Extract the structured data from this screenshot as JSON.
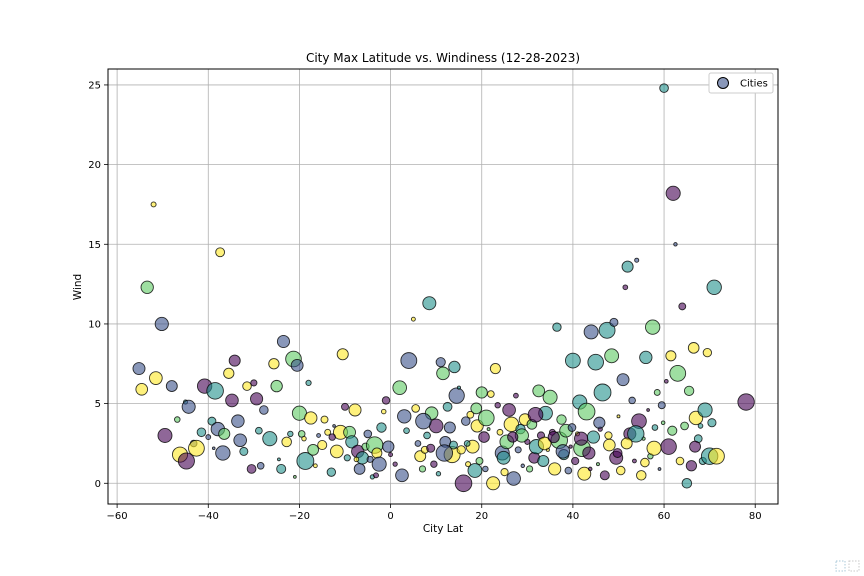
{
  "chart_data": {
    "type": "scatter",
    "title": "City Max Latitude vs. Windiness (12-28-2023)",
    "xlabel": "City Lat",
    "ylabel": "Wind",
    "xlim": [
      -62,
      85
    ],
    "ylim": [
      -1.3,
      26
    ],
    "xticks": [
      -60,
      -40,
      -20,
      0,
      20,
      40,
      60,
      80
    ],
    "yticks": [
      0,
      5,
      10,
      15,
      20,
      25
    ],
    "grid": true,
    "legend": {
      "entries": [
        "Cities"
      ],
      "placement": "top-right"
    },
    "colormap": [
      "#440154",
      "#3b528b",
      "#21918c",
      "#5ec962",
      "#fde725"
    ],
    "marker_alpha": 0.6,
    "series": [
      {
        "name": "Cities",
        "points": [
          [
            -55.2,
            7.2
          ],
          [
            -54.6,
            5.9
          ],
          [
            -53.4,
            12.3
          ],
          [
            -52.0,
            17.5
          ],
          [
            -51.5,
            6.6
          ],
          [
            -50.2,
            10.0
          ],
          [
            -49.5,
            3.0
          ],
          [
            -48.0,
            6.1
          ],
          [
            -46.8,
            4.0
          ],
          [
            -46.2,
            1.8
          ],
          [
            -45.0,
            5.1
          ],
          [
            -44.3,
            4.8
          ],
          [
            -43.2,
            2.5
          ],
          [
            -42.6,
            2.2
          ],
          [
            -41.5,
            3.2
          ],
          [
            -40.8,
            6.1
          ],
          [
            -40.0,
            2.9
          ],
          [
            -39.2,
            3.9
          ],
          [
            -38.5,
            5.8
          ],
          [
            -37.9,
            3.4
          ],
          [
            -37.4,
            14.5
          ],
          [
            -36.8,
            1.9
          ],
          [
            -35.5,
            6.9
          ],
          [
            -34.8,
            5.2
          ],
          [
            -34.2,
            7.7
          ],
          [
            -33.5,
            3.9
          ],
          [
            -33.0,
            2.7
          ],
          [
            -32.2,
            2.0
          ],
          [
            -31.5,
            6.1
          ],
          [
            -30.5,
            0.9
          ],
          [
            -30.0,
            6.3
          ],
          [
            -29.4,
            5.3
          ],
          [
            -28.5,
            1.1
          ],
          [
            -27.8,
            4.6
          ],
          [
            -26.5,
            2.8
          ],
          [
            -25.6,
            7.5
          ],
          [
            -25.0,
            6.1
          ],
          [
            -24.5,
            1.5
          ],
          [
            -24.0,
            0.9
          ],
          [
            -23.5,
            8.9
          ],
          [
            -22.8,
            2.6
          ],
          [
            -22.0,
            3.1
          ],
          [
            -21.3,
            7.8
          ],
          [
            -21.0,
            0.4
          ],
          [
            -20.5,
            7.4
          ],
          [
            -20.0,
            4.4
          ],
          [
            -19.5,
            3.1
          ],
          [
            -18.7,
            1.4
          ],
          [
            -18.0,
            6.3
          ],
          [
            -17.5,
            4.1
          ],
          [
            -17.0,
            2.1
          ],
          [
            -16.5,
            1.1
          ],
          [
            -15.8,
            3.0
          ],
          [
            -15.0,
            2.4
          ],
          [
            -14.5,
            4.0
          ],
          [
            -13.8,
            3.2
          ],
          [
            -13.0,
            0.7
          ],
          [
            -12.4,
            3.6
          ],
          [
            -11.8,
            2.0
          ],
          [
            -11.0,
            3.2
          ],
          [
            -10.5,
            8.1
          ],
          [
            -10.0,
            4.8
          ],
          [
            -9.5,
            1.6
          ],
          [
            -9.0,
            3.2
          ],
          [
            -8.5,
            2.6
          ],
          [
            -7.8,
            4.6
          ],
          [
            -7.2,
            2.0
          ],
          [
            -6.8,
            0.9
          ],
          [
            -6.2,
            1.6
          ],
          [
            -5.5,
            2.3
          ],
          [
            -5.0,
            3.1
          ],
          [
            -4.5,
            1.5
          ],
          [
            -4.0,
            0.4
          ],
          [
            -3.5,
            2.4
          ],
          [
            -3.0,
            1.9
          ],
          [
            -2.5,
            1.2
          ],
          [
            -2.0,
            3.5
          ],
          [
            -1.5,
            4.5
          ],
          [
            -1.0,
            5.2
          ],
          [
            -0.5,
            2.3
          ],
          [
            0.0,
            1.8
          ],
          [
            1.0,
            1.2
          ],
          [
            2.0,
            6.0
          ],
          [
            2.5,
            0.5
          ],
          [
            3.5,
            3.3
          ],
          [
            4.0,
            7.7
          ],
          [
            5.0,
            10.3
          ],
          [
            5.5,
            4.7
          ],
          [
            6.0,
            2.5
          ],
          [
            6.5,
            1.7
          ],
          [
            7.0,
            0.9
          ],
          [
            7.5,
            2.1
          ],
          [
            8.0,
            3.0
          ],
          [
            8.5,
            11.3
          ],
          [
            9.0,
            4.4
          ],
          [
            9.5,
            1.2
          ],
          [
            10.0,
            3.6
          ],
          [
            10.5,
            0.6
          ],
          [
            11.0,
            7.6
          ],
          [
            11.5,
            6.9
          ],
          [
            12.0,
            2.6
          ],
          [
            12.5,
            4.8
          ],
          [
            13.0,
            3.5
          ],
          [
            13.5,
            1.8
          ],
          [
            14.0,
            7.3
          ],
          [
            14.5,
            5.5
          ],
          [
            15.0,
            6.0
          ],
          [
            15.5,
            2.1
          ],
          [
            16.0,
            0.0
          ],
          [
            16.5,
            3.9
          ],
          [
            17.0,
            1.2
          ],
          [
            17.5,
            4.3
          ],
          [
            18.0,
            2.3
          ],
          [
            18.5,
            0.8
          ],
          [
            19.0,
            3.6
          ],
          [
            19.5,
            1.4
          ],
          [
            20.0,
            5.7
          ],
          [
            20.5,
            2.9
          ],
          [
            21.0,
            4.1
          ],
          [
            21.5,
            3.4
          ],
          [
            22.0,
            5.6
          ],
          [
            22.5,
            0.0
          ],
          [
            23.0,
            7.2
          ],
          [
            23.5,
            4.9
          ],
          [
            24.0,
            3.2
          ],
          [
            24.5,
            1.9
          ],
          [
            25.0,
            0.7
          ],
          [
            25.5,
            2.6
          ],
          [
            26.0,
            4.6
          ],
          [
            26.5,
            3.7
          ],
          [
            27.0,
            0.3
          ],
          [
            27.5,
            5.5
          ],
          [
            28.0,
            2.1
          ],
          [
            28.5,
            3.4
          ],
          [
            29.0,
            1.1
          ],
          [
            29.5,
            4.0
          ],
          [
            30.0,
            2.6
          ],
          [
            30.5,
            0.9
          ],
          [
            31.0,
            3.7
          ],
          [
            31.5,
            1.6
          ],
          [
            32.0,
            2.3
          ],
          [
            32.5,
            5.8
          ],
          [
            33.0,
            3.0
          ],
          [
            33.5,
            1.4
          ],
          [
            34.0,
            4.4
          ],
          [
            34.5,
            2.1
          ],
          [
            35.0,
            5.4
          ],
          [
            35.5,
            3.2
          ],
          [
            36.0,
            0.9
          ],
          [
            36.5,
            9.8
          ],
          [
            37.0,
            2.7
          ],
          [
            37.5,
            4.0
          ],
          [
            38.0,
            1.8
          ],
          [
            38.5,
            3.3
          ],
          [
            39.0,
            0.8
          ],
          [
            39.5,
            2.3
          ],
          [
            40.0,
            7.7
          ],
          [
            40.5,
            1.4
          ],
          [
            41.0,
            3.1
          ],
          [
            41.5,
            5.1
          ],
          [
            42.0,
            2.2
          ],
          [
            42.5,
            0.6
          ],
          [
            43.0,
            4.5
          ],
          [
            43.5,
            1.9
          ],
          [
            44.0,
            9.5
          ],
          [
            44.5,
            2.9
          ],
          [
            45.0,
            7.6
          ],
          [
            45.5,
            1.2
          ],
          [
            46.0,
            3.4
          ],
          [
            46.5,
            5.7
          ],
          [
            47.0,
            0.5
          ],
          [
            47.5,
            9.6
          ],
          [
            48.0,
            2.4
          ],
          [
            48.5,
            8.0
          ],
          [
            49.0,
            10.1
          ],
          [
            49.5,
            1.6
          ],
          [
            50.0,
            4.2
          ],
          [
            50.5,
            0.8
          ],
          [
            51.0,
            6.5
          ],
          [
            51.5,
            12.3
          ],
          [
            52.0,
            13.6
          ],
          [
            52.5,
            3.1
          ],
          [
            53.0,
            5.2
          ],
          [
            53.5,
            1.4
          ],
          [
            54.0,
            14.0
          ],
          [
            54.5,
            3.9
          ],
          [
            55.0,
            0.5
          ],
          [
            55.5,
            2.8
          ],
          [
            56.0,
            7.9
          ],
          [
            56.5,
            4.6
          ],
          [
            57.0,
            1.7
          ],
          [
            57.5,
            9.8
          ],
          [
            58.0,
            3.5
          ],
          [
            58.5,
            5.7
          ],
          [
            59.0,
            0.9
          ],
          [
            59.5,
            4.9
          ],
          [
            60.0,
            24.8
          ],
          [
            60.5,
            6.4
          ],
          [
            61.0,
            2.3
          ],
          [
            61.5,
            8.0
          ],
          [
            62.0,
            18.2
          ],
          [
            62.5,
            15.0
          ],
          [
            63.0,
            6.9
          ],
          [
            63.5,
            1.4
          ],
          [
            64.0,
            11.1
          ],
          [
            64.5,
            3.6
          ],
          [
            65.0,
            0.0
          ],
          [
            65.5,
            5.8
          ],
          [
            66.0,
            1.1
          ],
          [
            66.5,
            8.5
          ],
          [
            67.0,
            4.1
          ],
          [
            67.5,
            2.8
          ],
          [
            68.0,
            3.6
          ],
          [
            68.5,
            1.4
          ],
          [
            69.0,
            4.6
          ],
          [
            69.5,
            8.2
          ],
          [
            70.0,
            1.7
          ],
          [
            70.5,
            3.8
          ],
          [
            71.0,
            12.3
          ],
          [
            71.5,
            1.7
          ],
          [
            78.0,
            5.1
          ],
          [
            -36.5,
            3.1
          ],
          [
            -28.9,
            3.3
          ],
          [
            -19.0,
            2.8
          ],
          [
            -12.8,
            2.9
          ],
          [
            -7.5,
            1.5
          ],
          [
            -3.2,
            0.5
          ],
          [
            3.0,
            4.2
          ],
          [
            7.2,
            3.9
          ],
          [
            11.8,
            1.9
          ],
          [
            16.8,
            2.5
          ],
          [
            20.8,
            0.9
          ],
          [
            24.8,
            1.6
          ],
          [
            28.8,
            3.0
          ],
          [
            33.8,
            2.5
          ],
          [
            37.8,
            2.0
          ],
          [
            41.8,
            2.8
          ],
          [
            45.8,
            3.8
          ],
          [
            49.8,
            1.9
          ],
          [
            53.8,
            3.1
          ],
          [
            57.8,
            2.2
          ],
          [
            61.8,
            3.3
          ],
          [
            66.8,
            2.3
          ],
          [
            -44.8,
            1.4
          ],
          [
            -38.8,
            2.2
          ],
          [
            8.8,
            2.2
          ],
          [
            13.8,
            2.4
          ],
          [
            18.8,
            4.7
          ],
          [
            26.8,
            2.9
          ],
          [
            31.8,
            4.3
          ],
          [
            35.8,
            2.9
          ],
          [
            39.8,
            3.5
          ],
          [
            43.8,
            0.9
          ],
          [
            47.8,
            3.0
          ],
          [
            51.8,
            2.5
          ],
          [
            55.8,
            1.3
          ],
          [
            59.8,
            3.8
          ]
        ]
      }
    ]
  },
  "toolbar": {
    "icon_name": "image-icon"
  }
}
